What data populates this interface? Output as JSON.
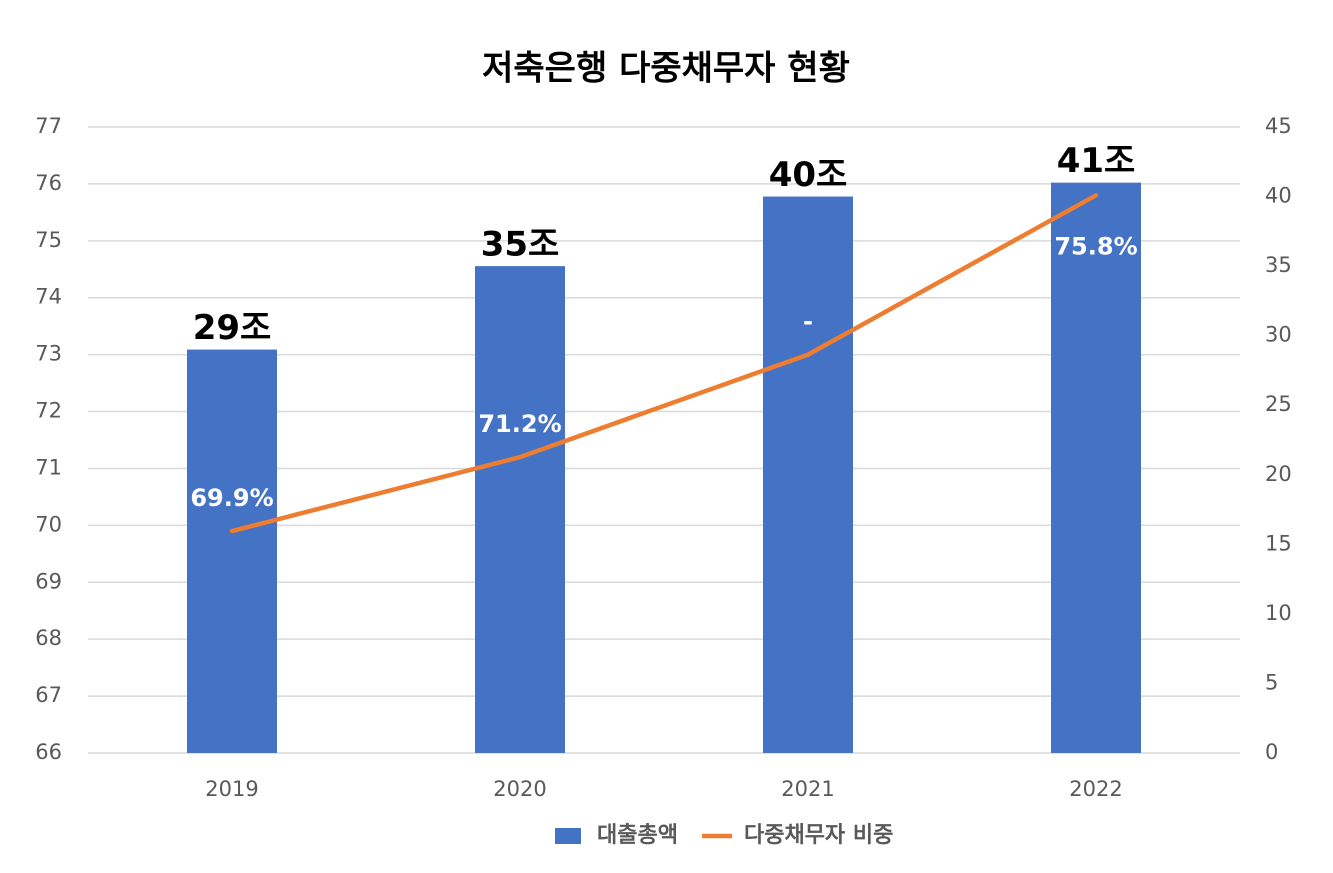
{
  "chart_data": {
    "type": "bar-line",
    "title": "저축은행 다중채무자 현황",
    "categories": [
      "2019",
      "2020",
      "2021",
      "2022"
    ],
    "series": [
      {
        "name": "대출총액",
        "type": "bar",
        "axis": "y2",
        "color": "#4472c4",
        "values": [
          29,
          35,
          40,
          41
        ],
        "value_labels": [
          "29조",
          "35조",
          "40조",
          "41조"
        ]
      },
      {
        "name": "다중채무자 비중",
        "type": "line",
        "axis": "y",
        "color": "#ed7d31",
        "values": [
          69.9,
          71.2,
          73.0,
          75.8
        ],
        "value_labels": [
          "69.9%",
          "71.2%",
          "-",
          "75.8%"
        ]
      }
    ],
    "ylim": [
      66,
      77
    ],
    "yticks": [
      66,
      67,
      68,
      69,
      70,
      71,
      72,
      73,
      74,
      75,
      76,
      77
    ],
    "y2lim": [
      0,
      45
    ],
    "y2ticks": [
      0,
      5,
      10,
      15,
      20,
      25,
      30,
      35,
      40,
      45
    ],
    "grid": true,
    "legend": "bottom"
  }
}
